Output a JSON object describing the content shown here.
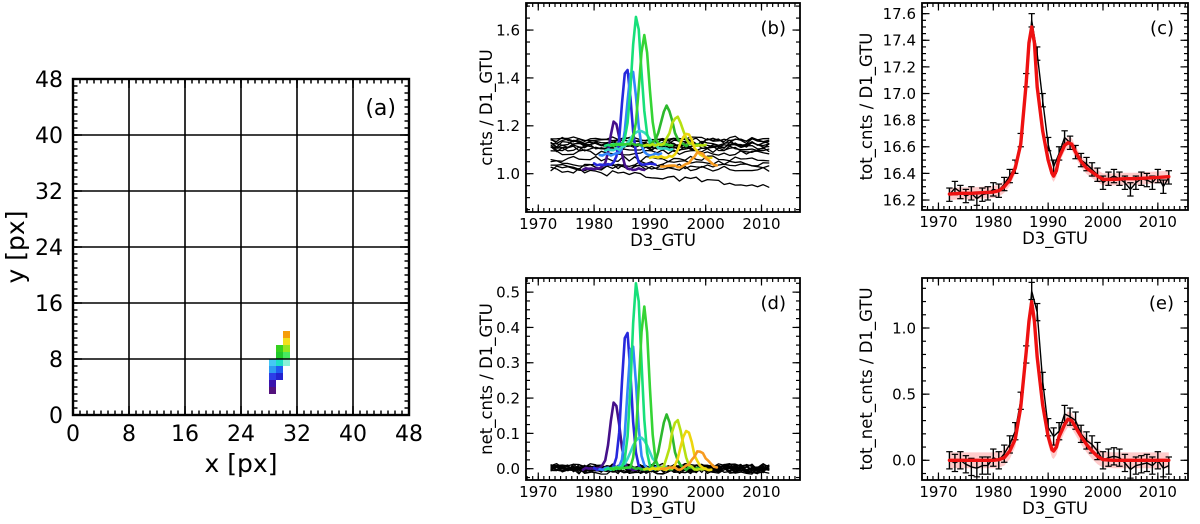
{
  "figure": {
    "background": "#ffffff",
    "description": "Five-panel detector figure: pixel map (a), counts light curves (b,d), total counts with fit (c,e)"
  },
  "chart_data": [
    {
      "id": "a",
      "type": "heatmap",
      "annotation": "(a)",
      "xlabel": "x [px]",
      "ylabel": "y [px]",
      "xlim": [
        0,
        48
      ],
      "ylim": [
        0,
        48
      ],
      "xtick_values": [
        0,
        8,
        16,
        24,
        32,
        40,
        48
      ],
      "xtick_labels": [
        "0",
        "8",
        "16",
        "24",
        "32",
        "40",
        "48"
      ],
      "ytick_values": [
        0,
        8,
        16,
        24,
        32,
        40,
        48
      ],
      "ytick_labels": [
        "0",
        "8",
        "16",
        "24",
        "32",
        "40",
        "48"
      ],
      "x_minor_step": 1,
      "y_minor_step": 1,
      "grid": true,
      "pixels": [
        {
          "x": 28,
          "y": 3,
          "color": "#53127d"
        },
        {
          "x": 28,
          "y": 4,
          "color": "#3a13ad"
        },
        {
          "x": 28,
          "y": 5,
          "color": "#2c3ee8"
        },
        {
          "x": 29,
          "y": 5,
          "color": "#2323cf"
        },
        {
          "x": 28,
          "y": 6,
          "color": "#2f9bf2"
        },
        {
          "x": 29,
          "y": 6,
          "color": "#1f5df2"
        },
        {
          "x": 28,
          "y": 7,
          "color": "#45c8f5"
        },
        {
          "x": 29,
          "y": 7,
          "color": "#1ddfc6"
        },
        {
          "x": 30,
          "y": 7,
          "color": "#8af2d8"
        },
        {
          "x": 29,
          "y": 8,
          "color": "#21c92b"
        },
        {
          "x": 30,
          "y": 8,
          "color": "#47e961"
        },
        {
          "x": 29,
          "y": 9,
          "color": "#35d11f"
        },
        {
          "x": 30,
          "y": 9,
          "color": "#93e620"
        },
        {
          "x": 30,
          "y": 10,
          "color": "#f2df1d"
        },
        {
          "x": 30,
          "y": 11,
          "color": "#f59d0a"
        }
      ]
    },
    {
      "id": "b",
      "type": "multi_line",
      "annotation": "(b)",
      "xlabel": "D3_GTU",
      "ylabel": "cnts / D1_GTU",
      "xlim": [
        1967.8,
        2016.9
      ],
      "ylim": [
        0.84,
        1.713
      ],
      "xtick_values": [
        1970,
        1980,
        1990,
        2000,
        2010
      ],
      "xtick_labels": [
        "1970",
        "1980",
        "1990",
        "2000",
        "2010"
      ],
      "ytick_values": [
        1.0,
        1.2,
        1.4,
        1.6
      ],
      "ytick_labels": [
        "1.0",
        "1.2",
        "1.4",
        "1.6"
      ],
      "x_minor_step": 1,
      "y_minor_step": 0.05,
      "background_lines": {
        "color": "#000000",
        "amplitude": 0.012,
        "x_start": 1972.3,
        "x_end": 2012,
        "step": 1,
        "seed": 11,
        "lines": [
          {
            "base": 1.145,
            "drift": 0
          },
          {
            "base": 1.14,
            "drift": 0
          },
          {
            "base": 1.134,
            "drift": 0
          },
          {
            "base": 1.128,
            "drift": 0
          },
          {
            "base": 1.122,
            "drift": 0
          },
          {
            "base": 1.118,
            "drift": 0
          },
          {
            "base": 1.112,
            "drift": 0
          },
          {
            "base": 1.108,
            "drift": 0
          },
          {
            "base": 1.1,
            "drift": 0
          },
          {
            "base": 1.088,
            "drift": 0
          },
          {
            "base": 1.062,
            "drift": 0
          },
          {
            "base": 1.042,
            "drift": 0
          },
          {
            "base": 1.03,
            "drift": 0
          },
          {
            "base": 1.022,
            "drift": 0
          },
          {
            "base": 1.02,
            "drift": -0.07
          }
        ]
      },
      "noise": 0.005,
      "series": [
        {
          "name": "indigo",
          "color": "#45108a",
          "center": 1983.7,
          "sigma": 0.85,
          "base": 1.02,
          "peak": 1.22,
          "x_start": 1978,
          "x_end": 1989
        },
        {
          "name": "blue",
          "color": "#2728dc",
          "center": 1985.8,
          "sigma": 0.8,
          "base": 1.04,
          "peak": 1.45,
          "x_start": 1980,
          "x_end": 1991
        },
        {
          "name": "dodger-blue",
          "color": "#3387fa",
          "center": 1986.8,
          "sigma": 0.8,
          "base": 1.08,
          "peak": 1.44,
          "x_start": 1981,
          "x_end": 1992
        },
        {
          "name": "cyan",
          "color": "#37d6c4",
          "center": 1988.3,
          "sigma": 1.6,
          "base": 1.1,
          "peak": 1.18,
          "x_start": 1982,
          "x_end": 1994
        },
        {
          "name": "spring-green",
          "color": "#17e07a",
          "center": 1987.6,
          "sigma": 0.85,
          "base": 1.12,
          "peak": 1.66,
          "x_start": 1982,
          "x_end": 1993
        },
        {
          "name": "green",
          "color": "#35d435",
          "center": 1989.0,
          "sigma": 0.85,
          "base": 1.12,
          "peak": 1.58,
          "x_start": 1983,
          "x_end": 1994
        },
        {
          "name": "dark-green",
          "color": "#2db82d",
          "center": 1993.0,
          "sigma": 1.0,
          "base": 1.12,
          "peak": 1.28,
          "x_start": 1987,
          "x_end": 1999
        },
        {
          "name": "yellow-green",
          "color": "#b5e011",
          "center": 1994.8,
          "sigma": 1.0,
          "base": 1.12,
          "peak": 1.24,
          "x_start": 1989,
          "x_end": 2000
        },
        {
          "name": "gold",
          "color": "#edd60e",
          "center": 1996.6,
          "sigma": 1.05,
          "base": 1.07,
          "peak": 1.17,
          "x_start": 1990,
          "x_end": 2001
        },
        {
          "name": "orange",
          "color": "#f79b20",
          "center": 1998.9,
          "sigma": 1.2,
          "base": 1.03,
          "peak": 1.09,
          "x_start": 1992,
          "x_end": 2002
        }
      ]
    },
    {
      "id": "c",
      "type": "fit_errorbar",
      "annotation": "(c)",
      "xlabel": "D3_GTU",
      "ylabel": "tot_cnts / D1_GTU",
      "xlim": [
        1967.0,
        2015.5
      ],
      "ylim": [
        16.125,
        17.68
      ],
      "xtick_values": [
        1970,
        1980,
        1990,
        2000,
        2010
      ],
      "xtick_labels": [
        "1970",
        "1980",
        "1990",
        "2000",
        "2010"
      ],
      "ytick_values": [
        16.2,
        16.4,
        16.6,
        16.8,
        17.0,
        17.2,
        17.4,
        17.6
      ],
      "ytick_labels": [
        "16.2",
        "16.4",
        "16.6",
        "16.8",
        "17.0",
        "17.2",
        "17.4",
        "17.6"
      ],
      "x_minor_step": 1,
      "y_minor_step": 0.05,
      "data_points": {
        "color": "#000000",
        "err": 0.05,
        "x": [
          1972,
          1973,
          1974,
          1975,
          1976,
          1977,
          1978,
          1979,
          1980,
          1981,
          1982,
          1983,
          1984,
          1985,
          1986,
          1987,
          1988,
          1989,
          1990,
          1991,
          1992,
          1993,
          1994,
          1995,
          1996,
          1997,
          1998,
          1999,
          2000,
          2001,
          2002,
          2003,
          2004,
          2005,
          2006,
          2007,
          2008,
          2009,
          2010,
          2011,
          2012
        ],
        "y": [
          16.24,
          16.29,
          16.26,
          16.23,
          16.25,
          16.21,
          16.24,
          16.25,
          16.28,
          16.27,
          16.32,
          16.38,
          16.45,
          16.65,
          17.1,
          17.55,
          17.3,
          16.95,
          16.62,
          16.45,
          16.55,
          16.67,
          16.63,
          16.56,
          16.5,
          16.47,
          16.43,
          16.39,
          16.33,
          16.36,
          16.38,
          16.36,
          16.33,
          16.28,
          16.33,
          16.36,
          16.35,
          16.33,
          16.38,
          16.3,
          16.37
        ]
      },
      "fit": {
        "color": "#ee1111",
        "band_color": "#ff6a6a",
        "band_opacity": 0.35,
        "band_halfwidth": 0.045,
        "x": [
          1972,
          1974,
          1976,
          1978,
          1980,
          1981,
          1982,
          1983,
          1984,
          1985,
          1986,
          1986.5,
          1987,
          1987.5,
          1988,
          1989,
          1990,
          1990.7,
          1991,
          1991.5,
          1992,
          1993,
          1993.6,
          1994.3,
          1995,
          1996,
          1997,
          1998,
          1999,
          2000,
          2002,
          2004,
          2006,
          2008,
          2010,
          2012
        ],
        "y": [
          16.245,
          16.25,
          16.25,
          16.255,
          16.26,
          16.27,
          16.3,
          16.35,
          16.44,
          16.62,
          17.08,
          17.38,
          17.5,
          17.38,
          17.05,
          16.72,
          16.5,
          16.4,
          16.38,
          16.42,
          16.52,
          16.61,
          16.63,
          16.62,
          16.56,
          16.49,
          16.44,
          16.41,
          16.38,
          16.355,
          16.355,
          16.36,
          16.36,
          16.365,
          16.37,
          16.375
        ]
      }
    },
    {
      "id": "d",
      "type": "multi_line",
      "annotation": "(d)",
      "xlabel": "D3_GTU",
      "ylabel": "net_cnts / D1_GTU",
      "xlim": [
        1967.8,
        2016.9
      ],
      "ylim": [
        -0.032,
        0.54
      ],
      "xtick_values": [
        1970,
        1980,
        1990,
        2000,
        2010
      ],
      "xtick_labels": [
        "1970",
        "1980",
        "1990",
        "2000",
        "2010"
      ],
      "ytick_values": [
        0.0,
        0.1,
        0.2,
        0.3,
        0.4,
        0.5
      ],
      "ytick_labels": [
        "0.0",
        "0.1",
        "0.2",
        "0.3",
        "0.4",
        "0.5"
      ],
      "x_minor_step": 1,
      "y_minor_step": 0.025,
      "background_lines": {
        "color": "#000000",
        "amplitude": 0.011,
        "x_start": 1972.3,
        "x_end": 2012,
        "step": 1,
        "seed": 23,
        "lines": [
          {
            "base": 0.004,
            "drift": 0
          },
          {
            "base": 0.002,
            "drift": 0
          },
          {
            "base": 0.0,
            "drift": 0
          },
          {
            "base": -0.002,
            "drift": 0
          },
          {
            "base": 0.003,
            "drift": 0
          },
          {
            "base": -0.004,
            "drift": 0
          },
          {
            "base": 0.001,
            "drift": 0
          },
          {
            "base": 0.005,
            "drift": 0
          },
          {
            "base": -0.003,
            "drift": 0
          },
          {
            "base": 0.002,
            "drift": 0
          },
          {
            "base": -0.001,
            "drift": 0
          },
          {
            "base": 0.0,
            "drift": 0
          },
          {
            "base": 0.004,
            "drift": 0
          },
          {
            "base": -0.005,
            "drift": 0
          },
          {
            "base": 0.001,
            "drift": 0
          }
        ]
      },
      "noise": 0.004,
      "series": [
        {
          "name": "indigo",
          "color": "#45108a",
          "center": 1983.7,
          "sigma": 0.85,
          "base": 0,
          "peak": 0.19,
          "x_start": 1978,
          "x_end": 1989
        },
        {
          "name": "blue",
          "color": "#2728dc",
          "center": 1985.8,
          "sigma": 0.8,
          "base": 0,
          "peak": 0.4,
          "x_start": 1980,
          "x_end": 1991
        },
        {
          "name": "dodger-blue",
          "color": "#3387fa",
          "center": 1986.8,
          "sigma": 0.8,
          "base": 0,
          "peak": 0.36,
          "x_start": 1981,
          "x_end": 1992
        },
        {
          "name": "cyan",
          "color": "#37d6c4",
          "center": 1988.3,
          "sigma": 1.5,
          "base": 0,
          "peak": 0.09,
          "x_start": 1982,
          "x_end": 1994
        },
        {
          "name": "spring-green",
          "color": "#17e07a",
          "center": 1987.6,
          "sigma": 0.85,
          "base": 0,
          "peak": 0.53,
          "x_start": 1982,
          "x_end": 1993
        },
        {
          "name": "green",
          "color": "#35d435",
          "center": 1989.0,
          "sigma": 0.85,
          "base": 0,
          "peak": 0.46,
          "x_start": 1983,
          "x_end": 1994
        },
        {
          "name": "dark-green",
          "color": "#2db82d",
          "center": 1993.0,
          "sigma": 1.0,
          "base": 0,
          "peak": 0.15,
          "x_start": 1987,
          "x_end": 1999
        },
        {
          "name": "yellow-green",
          "color": "#b5e011",
          "center": 1994.8,
          "sigma": 1.0,
          "base": 0,
          "peak": 0.14,
          "x_start": 1989,
          "x_end": 2000
        },
        {
          "name": "gold",
          "color": "#edd60e",
          "center": 1996.6,
          "sigma": 1.0,
          "base": 0,
          "peak": 0.11,
          "x_start": 1990,
          "x_end": 2001
        },
        {
          "name": "orange",
          "color": "#f79b20",
          "center": 1998.9,
          "sigma": 1.2,
          "base": 0,
          "peak": 0.05,
          "x_start": 1992,
          "x_end": 2002
        }
      ]
    },
    {
      "id": "e",
      "type": "fit_errorbar",
      "annotation": "(e)",
      "xlabel": "D3_GTU",
      "ylabel": "tot_net_cnts / D1_GTU",
      "xlim": [
        1967.0,
        2015.5
      ],
      "ylim": [
        -0.149,
        1.378
      ],
      "xtick_values": [
        1970,
        1980,
        1990,
        2000,
        2010
      ],
      "xtick_labels": [
        "1970",
        "1980",
        "1990",
        "2000",
        "2010"
      ],
      "ytick_values": [
        0.0,
        0.5,
        1.0
      ],
      "ytick_labels": [
        "0.0",
        "0.5",
        "1.0"
      ],
      "x_minor_step": 1,
      "y_minor_step": 0.1,
      "data_points": {
        "color": "#000000",
        "err": 0.065,
        "x": [
          1972,
          1973,
          1974,
          1975,
          1976,
          1977,
          1978,
          1979,
          1980,
          1981,
          1982,
          1983,
          1984,
          1985,
          1986,
          1987,
          1988,
          1989,
          1990,
          1991,
          1992,
          1993,
          1994,
          1995,
          1996,
          1997,
          1998,
          1999,
          2000,
          2001,
          2002,
          2003,
          2004,
          2005,
          2006,
          2007,
          2008,
          2009,
          2010,
          2011,
          2012
        ],
        "y": [
          0.0,
          -0.02,
          0.0,
          -0.03,
          -0.05,
          -0.06,
          -0.04,
          -0.04,
          0.02,
          0.0,
          0.05,
          0.12,
          0.22,
          0.45,
          0.8,
          1.28,
          1.12,
          0.6,
          0.25,
          0.18,
          0.22,
          0.35,
          0.33,
          0.3,
          0.2,
          0.15,
          0.12,
          0.07,
          0.0,
          0.02,
          0.03,
          0.02,
          -0.02,
          -0.07,
          -0.04,
          -0.03,
          -0.02,
          -0.04,
          0.0,
          -0.06,
          -0.04
        ]
      },
      "fit": {
        "color": "#ee1111",
        "band_color": "#ff6a6a",
        "band_opacity": 0.35,
        "band_halfwidth": 0.06,
        "x": [
          1972,
          1976,
          1980,
          1981,
          1982,
          1983,
          1984,
          1985,
          1986,
          1986.5,
          1987,
          1987.5,
          1988,
          1989,
          1990,
          1990.7,
          1991,
          1991.5,
          1992,
          1993,
          1993.6,
          1994.3,
          1995,
          1996,
          1997,
          1998,
          1999,
          2000,
          2002,
          2004,
          2006,
          2008,
          2010,
          2012
        ],
        "y": [
          0.0,
          0.0,
          0.0,
          0.005,
          0.02,
          0.07,
          0.16,
          0.4,
          0.82,
          1.05,
          1.2,
          1.05,
          0.78,
          0.42,
          0.18,
          0.08,
          0.07,
          0.1,
          0.18,
          0.27,
          0.31,
          0.3,
          0.25,
          0.18,
          0.12,
          0.07,
          0.03,
          0.005,
          0.0,
          0.0,
          0.0,
          0.0,
          0.0,
          0.0
        ]
      }
    }
  ]
}
